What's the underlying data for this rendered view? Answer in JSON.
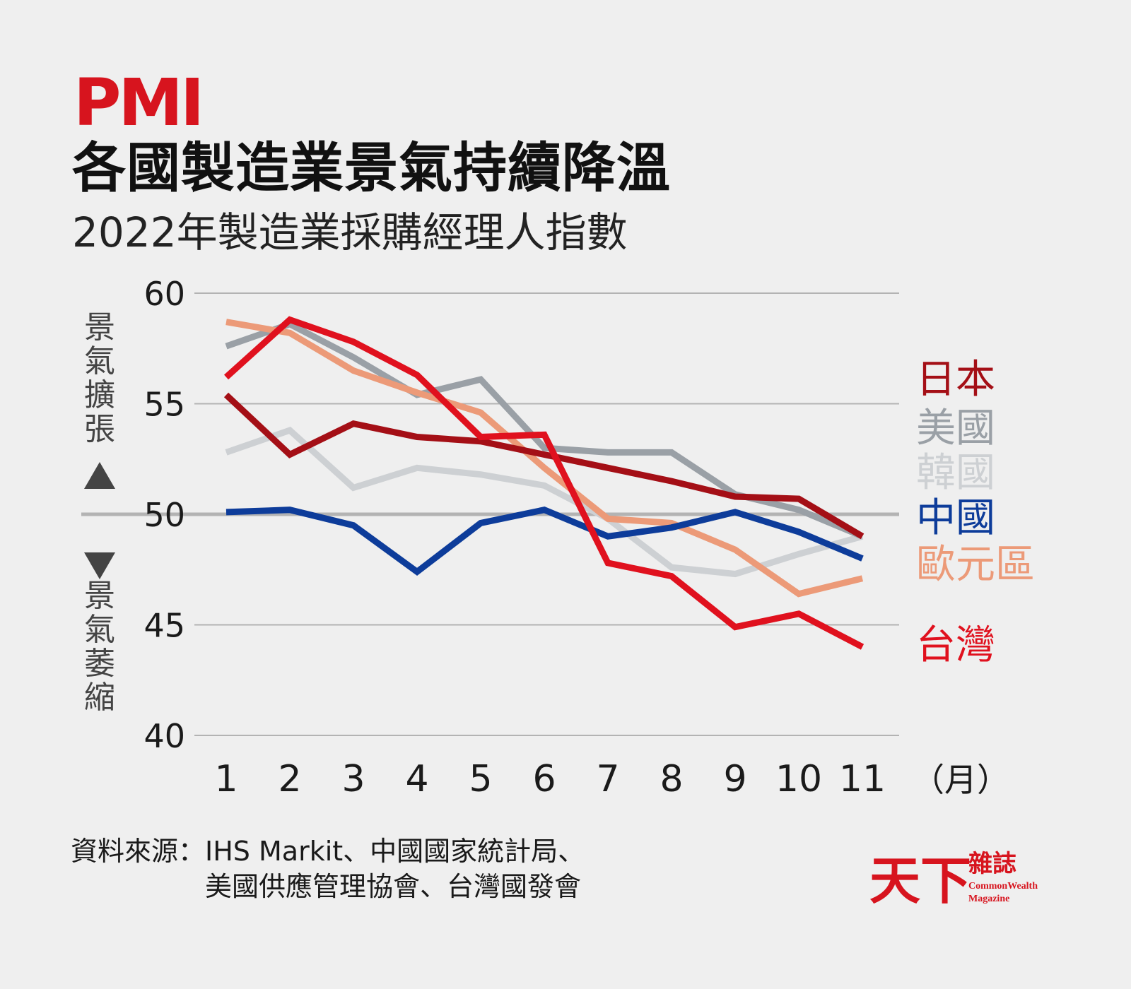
{
  "header": {
    "title_pmi": "PMI",
    "title_main": "各國製造業景氣持續降溫",
    "subtitle": "2022年製造業採購經理人指數"
  },
  "side_labels": {
    "up": "景氣擴張",
    "down": "景氣萎縮"
  },
  "source": {
    "label": "資料來源：",
    "line1": "IHS Markit、中國國家統計局、",
    "line2": "美國供應管理協會、台灣國發會"
  },
  "logo": {
    "text_main": "天下",
    "text_cn": "雜誌",
    "text_en1": "CommonWealth",
    "text_en2": "Magazine"
  },
  "chart_data": {
    "type": "line",
    "x": [
      1,
      2,
      3,
      4,
      5,
      6,
      7,
      8,
      9,
      10,
      11
    ],
    "x_tick_labels": [
      "1",
      "2",
      "3",
      "4",
      "5",
      "6",
      "7",
      "8",
      "9",
      "10",
      "11"
    ],
    "x_unit": "（月）",
    "y_ticks": [
      60,
      55,
      50,
      45,
      40
    ],
    "ylim": [
      40,
      60
    ],
    "reference_line": 50,
    "grid": true,
    "legend_placement": "right",
    "series": [
      {
        "name": "韓國",
        "color": "#cdd0d3",
        "values": [
          52.8,
          53.8,
          51.2,
          52.1,
          51.8,
          51.3,
          49.8,
          47.6,
          47.3,
          48.2,
          49.0
        ]
      },
      {
        "name": "美國",
        "color": "#9aa0a6",
        "values": [
          57.6,
          58.6,
          57.1,
          55.4,
          56.1,
          53.0,
          52.8,
          52.8,
          50.9,
          50.2,
          49.0
        ]
      },
      {
        "name": "歐元區",
        "color": "#ec9a78",
        "values": [
          58.7,
          58.2,
          56.5,
          55.5,
          54.6,
          52.1,
          49.8,
          49.6,
          48.4,
          46.4,
          47.1
        ]
      },
      {
        "name": "中國",
        "color": "#0d3c9a",
        "values": [
          50.1,
          50.2,
          49.5,
          47.4,
          49.6,
          50.2,
          49.0,
          49.4,
          50.1,
          49.2,
          48.0
        ]
      },
      {
        "name": "日本",
        "color": "#a40f16",
        "values": [
          55.4,
          52.7,
          54.1,
          53.5,
          53.3,
          52.7,
          52.1,
          51.5,
          50.8,
          50.7,
          49.0
        ]
      },
      {
        "name": "台灣",
        "color": "#e0111e",
        "values": [
          56.2,
          58.8,
          57.8,
          56.3,
          53.5,
          53.6,
          47.8,
          47.2,
          44.9,
          45.5,
          44.0
        ]
      }
    ],
    "legend_order": [
      "日本",
      "美國",
      "韓國",
      "中國",
      "歐元區",
      "台灣"
    ]
  }
}
